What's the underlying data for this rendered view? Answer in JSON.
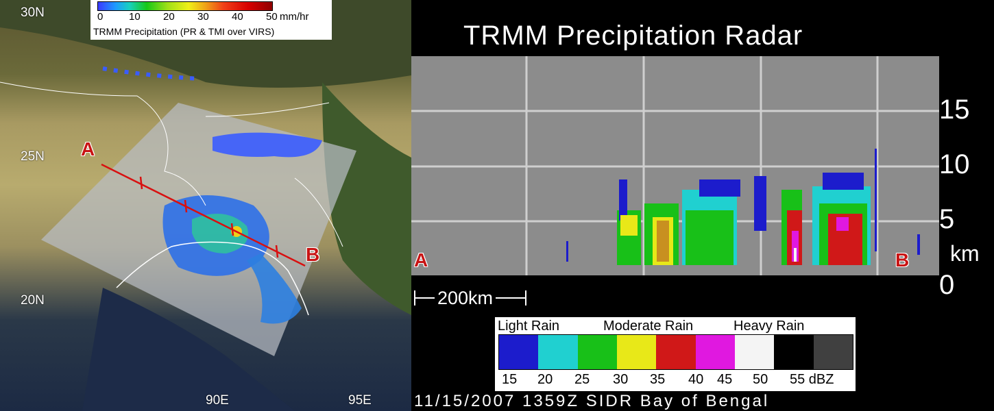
{
  "map": {
    "lat_labels": [
      "30N",
      "25N",
      "20N"
    ],
    "lon_labels": [
      "90E",
      "95E"
    ],
    "point_a": "A",
    "point_b": "B",
    "colorbar": {
      "ticks": [
        "0",
        "10",
        "20",
        "30",
        "40",
        "50"
      ],
      "unit": "mm/hr",
      "caption": "TRMM Precipitation  (PR & TMI over VIRS)"
    }
  },
  "radar": {
    "title": "TRMM Precipitation Radar",
    "y_ticks": [
      "15",
      "10",
      "5",
      "0"
    ],
    "y_unit": "km",
    "point_a": "A",
    "point_b": "B",
    "scale_bar": "200km"
  },
  "legend": {
    "headers": [
      "Light Rain",
      "Moderate Rain",
      "Heavy Rain"
    ],
    "ticks": [
      "15",
      "20",
      "25",
      "30",
      "35",
      "40",
      "45",
      "50",
      "55 dBZ"
    ],
    "colors": [
      "#1c1ccc",
      "#20d0d0",
      "#18c018",
      "#e8e818",
      "#d01818",
      "#e018e0",
      "#f4f4f4",
      "#000000",
      "#404040"
    ]
  },
  "footer": "11/15/2007 1359Z  SIDR  Bay of Bengal"
}
